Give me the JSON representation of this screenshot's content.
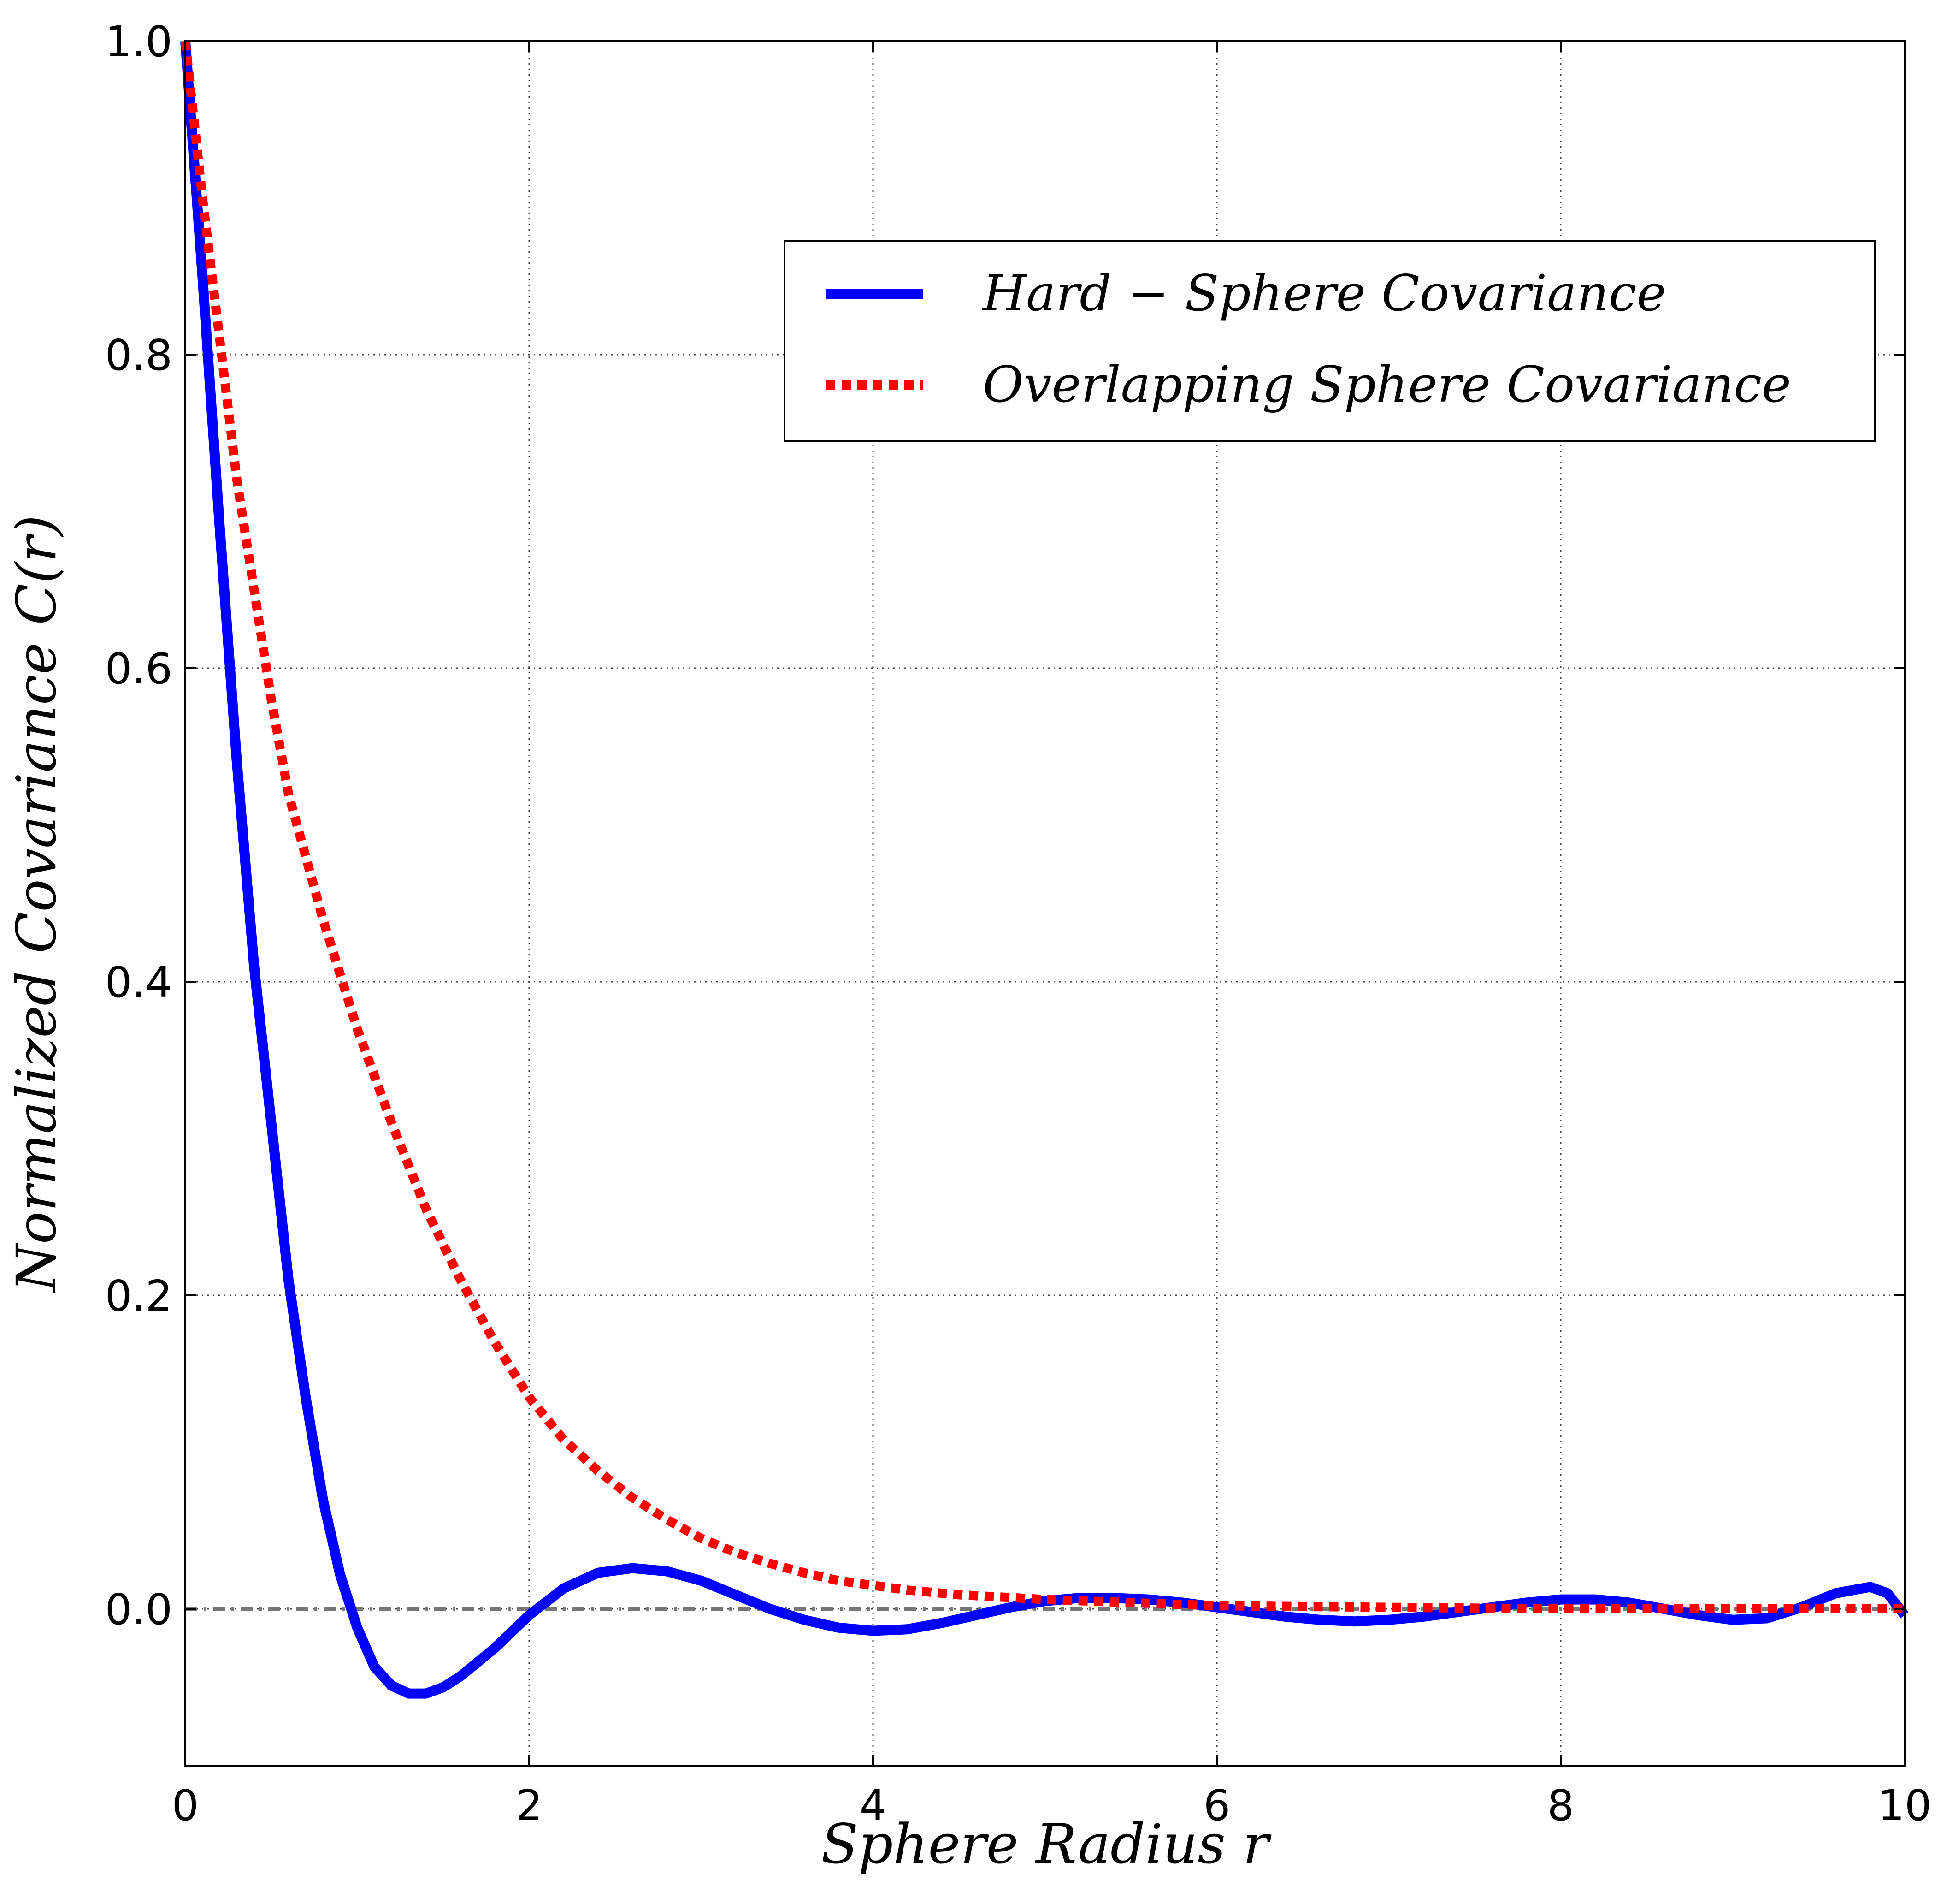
{
  "chart_data": {
    "type": "line",
    "xlabel": "Sphere Radius r",
    "ylabel": "Normalized Covariance C(r)",
    "xlim": [
      0,
      10
    ],
    "ylim": [
      -0.1,
      1.0
    ],
    "x_ticks": [
      0,
      2,
      4,
      6,
      8,
      10
    ],
    "y_ticks": [
      0.0,
      0.2,
      0.4,
      0.6,
      0.8,
      1.0
    ],
    "x_tick_labels": [
      "0",
      "2",
      "4",
      "6",
      "8",
      "10"
    ],
    "y_tick_labels": [
      "0.0",
      "0.2",
      "0.4",
      "0.6",
      "0.8",
      "1.0"
    ],
    "grid": true,
    "legend_position": "top-right",
    "reference_line": {
      "y": 0.0,
      "color": "#777777",
      "style": "dash-dot"
    },
    "series": [
      {
        "name": "Hard − Sphere Covariance",
        "color": "#0000ff",
        "style": "solid",
        "x": [
          0,
          0.1,
          0.2,
          0.3,
          0.4,
          0.5,
          0.6,
          0.7,
          0.8,
          0.9,
          1.0,
          1.1,
          1.2,
          1.3,
          1.4,
          1.5,
          1.6,
          1.8,
          2.0,
          2.2,
          2.4,
          2.6,
          2.8,
          3.0,
          3.2,
          3.4,
          3.6,
          3.8,
          4.0,
          4.2,
          4.4,
          4.6,
          4.8,
          5.0,
          5.2,
          5.4,
          5.6,
          5.8,
          6.0,
          6.2,
          6.4,
          6.6,
          6.8,
          7.0,
          7.2,
          7.4,
          7.6,
          7.8,
          8.0,
          8.2,
          8.4,
          8.6,
          8.8,
          9.0,
          9.2,
          9.4,
          9.6,
          9.8,
          9.9,
          10.0
        ],
        "y": [
          1.0,
          0.85,
          0.69,
          0.54,
          0.41,
          0.31,
          0.21,
          0.135,
          0.07,
          0.022,
          -0.012,
          -0.037,
          -0.049,
          -0.054,
          -0.054,
          -0.05,
          -0.043,
          -0.025,
          -0.004,
          0.013,
          0.023,
          0.026,
          0.024,
          0.018,
          0.009,
          0.0,
          -0.007,
          -0.012,
          -0.014,
          -0.013,
          -0.009,
          -0.004,
          0.001,
          0.005,
          0.007,
          0.007,
          0.006,
          0.004,
          0.001,
          -0.002,
          -0.005,
          -0.007,
          -0.008,
          -0.007,
          -0.005,
          -0.002,
          0.001,
          0.004,
          0.006,
          0.006,
          0.004,
          0.0,
          -0.004,
          -0.007,
          -0.006,
          0.001,
          0.01,
          0.014,
          0.01,
          -0.004
        ]
      },
      {
        "name": "Overlapping Sphere Covariance",
        "color": "#ff0000",
        "style": "dotted",
        "x": [
          0,
          0.1,
          0.2,
          0.3,
          0.4,
          0.5,
          0.6,
          0.8,
          1.0,
          1.2,
          1.4,
          1.6,
          1.8,
          2.0,
          2.2,
          2.4,
          2.6,
          2.8,
          3.0,
          3.2,
          3.4,
          3.6,
          3.8,
          4.0,
          4.2,
          4.5,
          5.0,
          5.5,
          6.0,
          7.0,
          8.0,
          9.0,
          10.0
        ],
        "y": [
          1.0,
          0.9,
          0.81,
          0.72,
          0.65,
          0.58,
          0.52,
          0.44,
          0.37,
          0.31,
          0.255,
          0.21,
          0.17,
          0.135,
          0.108,
          0.088,
          0.071,
          0.057,
          0.045,
          0.036,
          0.029,
          0.023,
          0.018,
          0.015,
          0.012,
          0.009,
          0.006,
          0.004,
          0.002,
          0.001,
          0.0,
          0.0,
          0.0
        ]
      }
    ]
  }
}
